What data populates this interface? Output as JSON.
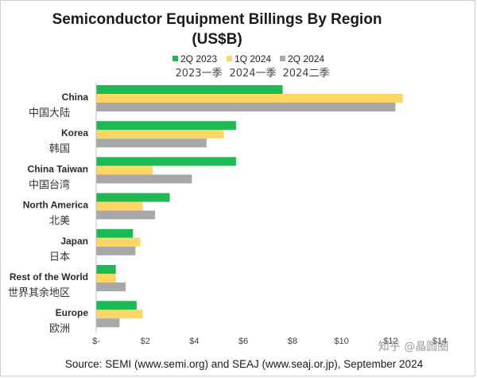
{
  "chart_data": {
    "type": "bar",
    "orientation": "horizontal",
    "title": "Semiconductor Equipment Billings By Region",
    "subtitle": "(US$B)",
    "categories": [
      "China",
      "Korea",
      "China Taiwan",
      "North America",
      "Japan",
      "Rest of the World",
      "Europe"
    ],
    "categories_cn": [
      "中国大陆",
      "韩国",
      "中国台湾",
      "北美",
      "日本",
      "世界其余地区",
      "欧洲"
    ],
    "series": [
      {
        "name": "2Q 2023",
        "name_cn": "2023一季",
        "color": "#1db954",
        "values": [
          7.6,
          5.7,
          5.7,
          3.0,
          1.5,
          0.8,
          1.65
        ]
      },
      {
        "name": "1Q 2024",
        "name_cn": "2024一季",
        "color": "#fdd663",
        "values": [
          12.5,
          5.2,
          2.3,
          1.9,
          1.8,
          0.8,
          1.9
        ]
      },
      {
        "name": "2Q 2024",
        "name_cn": "2024二季",
        "color": "#a8a8a8",
        "values": [
          12.2,
          4.5,
          3.9,
          2.4,
          1.6,
          1.2,
          0.95
        ]
      }
    ],
    "xlim": [
      0,
      14
    ],
    "xticks": [
      "$-",
      "$2",
      "$4",
      "$6",
      "$8",
      "$10",
      "$12",
      "$14"
    ],
    "grid": false,
    "legend_position": "top"
  },
  "source": "Source: SEMI (www.semi.org) and SEAJ (www.seaj.or.jp), September 2024",
  "watermark": "知乎 @晶圆圈"
}
